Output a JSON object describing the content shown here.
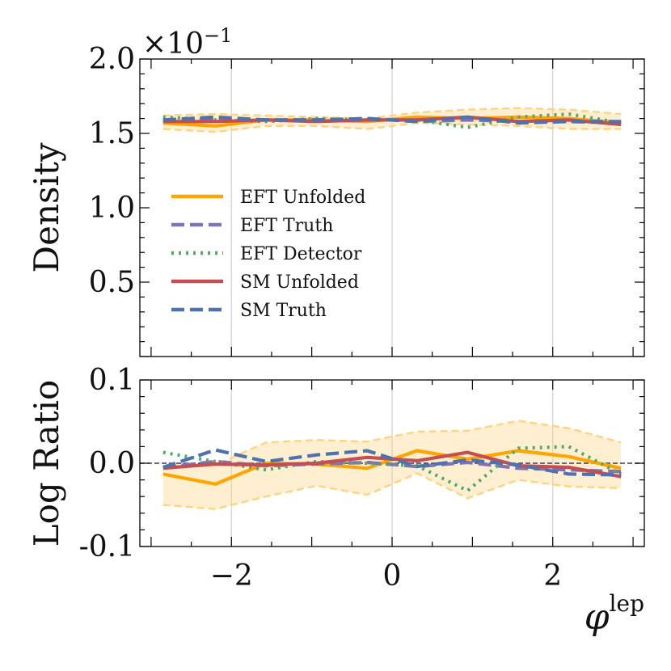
{
  "chart_data": {
    "type": "line",
    "x": [
      -2.85,
      -2.2,
      -1.57,
      -0.94,
      -0.31,
      0.31,
      0.94,
      1.57,
      2.2,
      2.85
    ],
    "colors": {
      "EFT Unfolded": "#ffa500",
      "EFT Truth": "#8172b3",
      "EFT Detector": "#55a868",
      "SM Unfolded": "#c44e52",
      "SM Truth": "#4c72b0",
      "band": "#ffd27a"
    },
    "legend": {
      "position": "center-left",
      "entries": [
        "EFT Unfolded",
        "EFT Truth",
        "EFT Detector",
        "SM Unfolded",
        "SM Truth"
      ]
    },
    "xlabel": "φ",
    "xlabel_superscript": "lep",
    "xlim": [
      -3.14,
      3.14
    ],
    "xticks": [
      -2,
      0,
      2
    ],
    "xtick_labels": [
      "−2",
      "0",
      "2"
    ],
    "panels": [
      {
        "name": "density",
        "ylabel": "Density",
        "scale_label": "×10",
        "scale_exponent": "−1",
        "ylim": [
          0.0,
          2.0
        ],
        "yticks": [
          0.5,
          1.0,
          1.5,
          2.0
        ],
        "ytick_labels": [
          "0.5",
          "1.0",
          "1.5",
          "2.0"
        ],
        "band": {
          "upper": [
            1.62,
            1.63,
            1.62,
            1.61,
            1.6,
            1.64,
            1.66,
            1.67,
            1.66,
            1.63
          ],
          "lower": [
            1.53,
            1.51,
            1.55,
            1.55,
            1.53,
            1.57,
            1.56,
            1.55,
            1.53,
            1.53
          ]
        },
        "series": [
          {
            "name": "EFT Unfolded",
            "values": [
              1.57,
              1.55,
              1.59,
              1.59,
              1.58,
              1.61,
              1.6,
              1.61,
              1.6,
              1.57
            ]
          },
          {
            "name": "EFT Truth",
            "values": [
              1.59,
              1.6,
              1.59,
              1.59,
              1.6,
              1.58,
              1.59,
              1.58,
              1.58,
              1.57
            ]
          },
          {
            "name": "EFT Detector",
            "values": [
              1.61,
              1.59,
              1.58,
              1.6,
              1.59,
              1.59,
              1.54,
              1.61,
              1.63,
              1.57
            ]
          },
          {
            "name": "SM Unfolded",
            "values": [
              1.58,
              1.58,
              1.59,
              1.58,
              1.59,
              1.59,
              1.61,
              1.58,
              1.59,
              1.56
            ]
          },
          {
            "name": "SM Truth",
            "values": [
              1.59,
              1.61,
              1.59,
              1.59,
              1.6,
              1.58,
              1.61,
              1.57,
              1.58,
              1.58
            ]
          }
        ]
      },
      {
        "name": "log-ratio",
        "ylabel": "Log Ratio",
        "ylim": [
          -0.1,
          0.1
        ],
        "yticks": [
          -0.1,
          0.0,
          0.1
        ],
        "ytick_labels": [
          "-0.1",
          "0.0",
          "0.1"
        ],
        "band": {
          "upper": [
            -0.003,
            -0.002,
            0.025,
            0.028,
            0.026,
            0.038,
            0.039,
            0.051,
            0.042,
            0.025
          ],
          "lower": [
            -0.05,
            -0.055,
            -0.04,
            -0.027,
            -0.038,
            -0.012,
            -0.042,
            -0.02,
            -0.028,
            -0.03
          ]
        },
        "series": [
          {
            "name": "EFT Unfolded",
            "values": [
              -0.013,
              -0.025,
              0.0,
              -0.001,
              -0.006,
              0.015,
              0.005,
              0.015,
              0.008,
              -0.006
            ]
          },
          {
            "name": "EFT Truth",
            "values": [
              -0.005,
              0.002,
              -0.003,
              -0.001,
              0.001,
              -0.004,
              0.001,
              -0.006,
              -0.008,
              -0.01
            ]
          },
          {
            "name": "EFT Detector",
            "values": [
              0.013,
              0.002,
              -0.008,
              0.002,
              0.0,
              -0.003,
              -0.033,
              0.018,
              0.02,
              -0.013
            ]
          },
          {
            "name": "SM Unfolded",
            "values": [
              -0.006,
              -0.001,
              -0.002,
              0.0,
              0.007,
              0.003,
              0.013,
              -0.003,
              -0.005,
              -0.016
            ]
          },
          {
            "name": "SM Truth",
            "values": [
              -0.005,
              0.016,
              0.002,
              0.01,
              0.015,
              -0.004,
              0.004,
              -0.002,
              -0.013,
              -0.014
            ]
          }
        ]
      }
    ]
  }
}
